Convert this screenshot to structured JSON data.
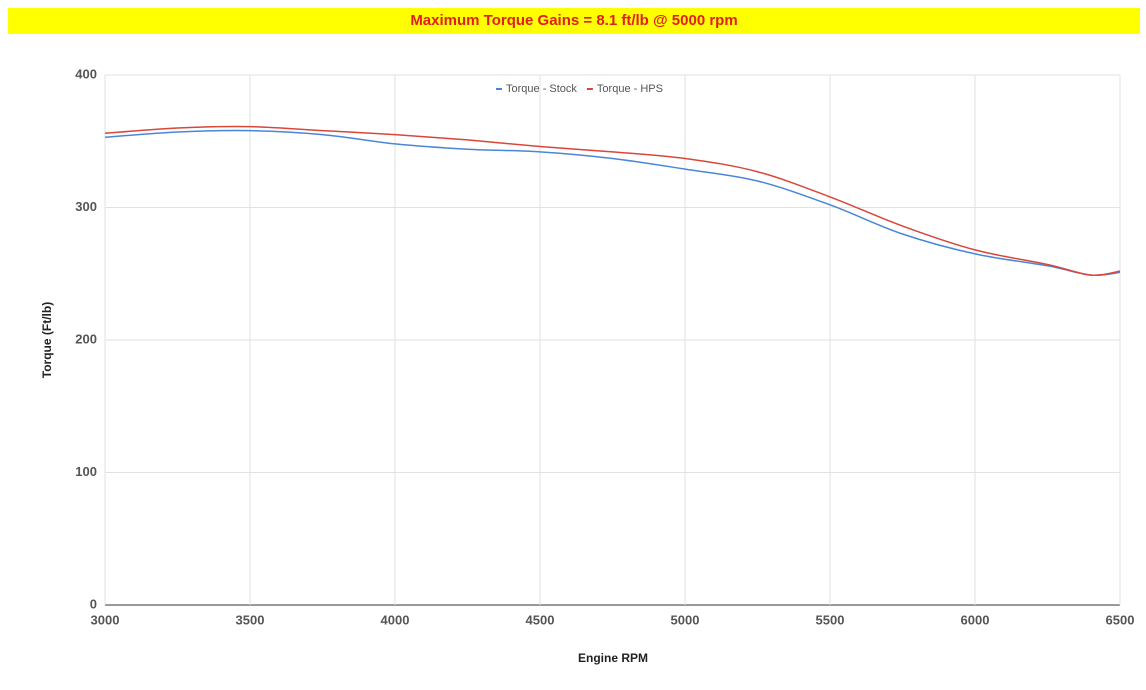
{
  "banner": "Maximum Torque Gains = 8.1 ft/lb @ 5000 rpm",
  "chart_data": {
    "type": "line",
    "x_label": "Engine RPM",
    "y_label": "Torque (Ft/lb)",
    "x": [
      3000,
      3250,
      3500,
      3750,
      4000,
      4250,
      4500,
      4750,
      5000,
      5250,
      5500,
      5750,
      6000,
      6250,
      6400,
      6500
    ],
    "series": [
      {
        "name": "Torque - Stock",
        "color": "#4a86d8",
        "values": [
          353,
          357,
          358,
          355,
          348,
          344,
          342,
          337,
          329,
          320,
          302,
          280,
          265,
          256,
          249,
          251
        ]
      },
      {
        "name": "Torque - HPS",
        "color": "#d9463a",
        "values": [
          356,
          360,
          361,
          358,
          355,
          351,
          346,
          342,
          337,
          327,
          308,
          286,
          268,
          257,
          249,
          252
        ]
      }
    ],
    "xlim": [
      3000,
      6500
    ],
    "xticks": [
      3000,
      3500,
      4000,
      4500,
      5000,
      5500,
      6000,
      6500
    ],
    "ylim": [
      0,
      400
    ],
    "yticks": [
      0,
      100,
      200,
      300,
      400
    ],
    "grid": true,
    "legend": "top"
  }
}
